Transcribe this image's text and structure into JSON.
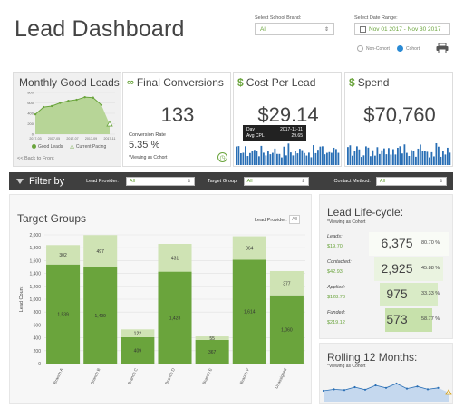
{
  "header": {
    "title": "Lead Dashboard",
    "school_label": "Select School Brand:",
    "school_value": "All",
    "date_label": "Select Date Range:",
    "date_value": "Nov 01 2017 - Nov 30 2017",
    "radio_noncohort": "Non-Cohort",
    "radio_cohort": "Cohort"
  },
  "cards": {
    "good_leads": {
      "title": "Monthly Good Leads",
      "legend_good": "Good Leads",
      "legend_pacing": "Current Pacing",
      "back": "<< Back to Front",
      "yticks": [
        "800",
        "600",
        "400",
        "200",
        "0"
      ],
      "xticks": [
        "2017-03",
        "2017-05",
        "2017-07",
        "2017-09",
        "2017-11"
      ],
      "values": [
        380,
        520,
        540,
        600,
        640,
        660,
        710,
        700,
        560,
        190
      ]
    },
    "final_conversions": {
      "title": "Final Conversions",
      "value": "133",
      "rate_label": "Conversion Rate",
      "rate_value": "5.35 %",
      "note": "*Viewing as Cohort"
    },
    "cost_per_lead": {
      "title": "Cost Per Lead",
      "value": "$29.14",
      "tooltip_day_label": "Day",
      "tooltip_day_value": "2017-11-11",
      "tooltip_cpl_label": "Avg CPL",
      "tooltip_cpl_value": "29.65"
    },
    "spend": {
      "title": "Spend",
      "value": "$70,760"
    }
  },
  "filters": {
    "label": "Filter by",
    "provider_label": "Lead Provider:",
    "provider_value": "All",
    "target_label": "Target Group:",
    "target_value": "All",
    "contact_label": "Contact Method:",
    "contact_value": "All"
  },
  "target_groups": {
    "title": "Target Groups",
    "provider_label": "Lead Provider:",
    "provider_value": "All",
    "ylabel": "Lead Count"
  },
  "chart_data": {
    "type": "bar",
    "stacked": true,
    "categories": [
      "Branch A",
      "Branch B",
      "Branch C",
      "Branch D",
      "Branch E",
      "Branch F",
      "Unassigned"
    ],
    "series": [
      {
        "name": "",
        "values": [
          1539,
          1499,
          409,
          1428,
          367,
          1614,
          1060
        ],
        "color": "#6aa43c"
      },
      {
        "name": "",
        "values": [
          302,
          497,
          122,
          431,
          55,
          364,
          377
        ],
        "color": "#cfe3b4"
      }
    ],
    "ylim": [
      0,
      2000
    ],
    "yticks": [
      "2,000",
      "1,800",
      "1,600",
      "1,400",
      "1,200",
      "1,000",
      "800",
      "600",
      "400",
      "200",
      "0"
    ],
    "ylabel": "Lead Count",
    "xlabel": "",
    "title": "",
    "grid": true
  },
  "lifecycle": {
    "title": "Lead Life-cycle:",
    "note": "*Viewing as Cohort",
    "rows": [
      {
        "label": "Leads:",
        "cost": "$19.70",
        "count": "6,375",
        "pct": "80.70 %"
      },
      {
        "label": "Contacted:",
        "cost": "$42.93",
        "count": "2,925",
        "pct": "45.88 %"
      },
      {
        "label": "Applied:",
        "cost": "$128.78",
        "count": "975",
        "pct": "33.33 %"
      },
      {
        "label": "Funded:",
        "cost": "$219.12",
        "count": "573",
        "pct": "58.77 %"
      }
    ]
  },
  "rolling": {
    "title": "Rolling 12 Months:",
    "note": "*Viewing as Cohort",
    "values": [
      30,
      34,
      32,
      40,
      33,
      45,
      38,
      50,
      36,
      42,
      34,
      38,
      25
    ]
  },
  "colors": {
    "accent_green": "#6aa43c",
    "light_green": "#cfe3b4",
    "blue": "#2a6fb5",
    "filter_bar": "#3f3f3f"
  }
}
